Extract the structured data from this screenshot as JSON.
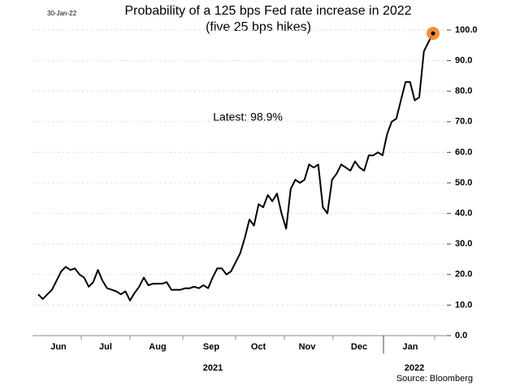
{
  "chart_data": {
    "type": "line",
    "title": "Probability of a 125 bps Fed rate increase in 2022",
    "subtitle": "(five 25 bps hikes)",
    "date": "30-Jan-22",
    "annotation": "Latest:  98.9%",
    "source": "Source: Bloomberg",
    "month_labels": [
      "Jun",
      "Jul",
      "Aug",
      "Sep",
      "Oct",
      "Nov",
      "Dec",
      "Jan"
    ],
    "year_labels": [
      "2021",
      "2022"
    ],
    "series": [
      {
        "name": "Probability",
        "color": "#000000",
        "values": [
          13.5,
          12,
          13.5,
          15,
          18,
          21,
          22.5,
          21.5,
          22,
          20,
          19,
          16,
          17.5,
          21.5,
          18,
          15.5,
          15,
          14.5,
          13.5,
          14.5,
          11.5,
          14,
          16,
          19,
          16.5,
          17,
          17,
          17,
          17.5,
          15,
          15,
          15,
          15.5,
          15.5,
          16,
          15.5,
          16.5,
          15.5,
          19,
          22,
          22,
          20,
          21,
          24,
          27,
          32,
          38,
          36,
          43,
          42,
          46,
          44,
          46.5,
          40,
          35,
          48,
          51,
          50,
          51,
          56,
          55,
          56,
          42,
          40,
          51,
          53,
          56,
          55,
          54,
          57,
          55,
          54,
          59,
          59,
          60,
          59,
          66,
          70,
          71,
          77,
          83,
          83,
          77,
          78,
          93,
          96,
          98.9
        ]
      }
    ],
    "latest_color": "#f58220",
    "ylim": [
      0,
      100
    ],
    "yticks": [
      {
        "value": 0,
        "label": "0.0"
      },
      {
        "value": 10,
        "label": "10.0"
      },
      {
        "value": 20,
        "label": "20.0"
      },
      {
        "value": 30,
        "label": "30.0"
      },
      {
        "value": 40,
        "label": "40.0"
      },
      {
        "value": 50,
        "label": "50.0"
      },
      {
        "value": 60,
        "label": "60.0"
      },
      {
        "value": 70,
        "label": "70.0"
      },
      {
        "value": 80,
        "label": "80.0"
      },
      {
        "value": 90,
        "label": "90.0"
      },
      {
        "value": 100,
        "label": "100.0"
      }
    ],
    "grid": true
  }
}
